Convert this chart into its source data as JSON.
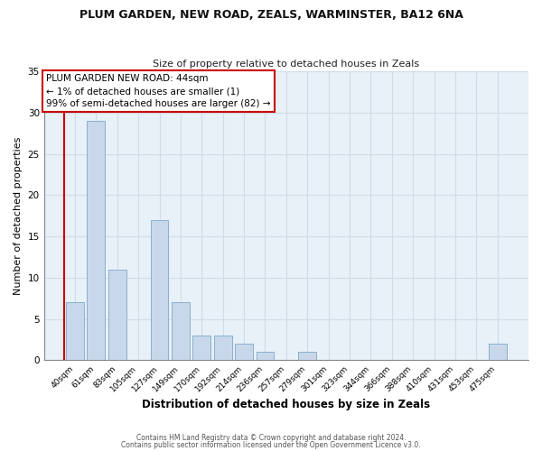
{
  "title": "PLUM GARDEN, NEW ROAD, ZEALS, WARMINSTER, BA12 6NA",
  "subtitle": "Size of property relative to detached houses in Zeals",
  "xlabel": "Distribution of detached houses by size in Zeals",
  "ylabel": "Number of detached properties",
  "bar_color": "#c8d8ea",
  "bar_edge_color": "#8ab0cc",
  "annotation_box_text": "PLUM GARDEN NEW ROAD: 44sqm\n← 1% of detached houses are smaller (1)\n99% of semi-detached houses are larger (82) →",
  "annotation_box_color": "#ffffff",
  "annotation_box_edge_color": "#cc0000",
  "grid_color": "#d0dde8",
  "background_color": "#ffffff",
  "plot_bg_color": "#e8f0f8",
  "categories": [
    "40sqm",
    "61sqm",
    "83sqm",
    "105sqm",
    "127sqm",
    "149sqm",
    "170sqm",
    "192sqm",
    "214sqm",
    "236sqm",
    "257sqm",
    "279sqm",
    "301sqm",
    "323sqm",
    "344sqm",
    "366sqm",
    "388sqm",
    "410sqm",
    "431sqm",
    "453sqm",
    "475sqm"
  ],
  "values": [
    7,
    29,
    11,
    0,
    17,
    7,
    3,
    3,
    2,
    1,
    0,
    1,
    0,
    0,
    0,
    0,
    0,
    0,
    0,
    0,
    2
  ],
  "ylim": [
    0,
    35
  ],
  "yticks": [
    0,
    5,
    10,
    15,
    20,
    25,
    30,
    35
  ],
  "footer_line1": "Contains HM Land Registry data © Crown copyright and database right 2024.",
  "footer_line2": "Contains public sector information licensed under the Open Government Licence v3.0."
}
